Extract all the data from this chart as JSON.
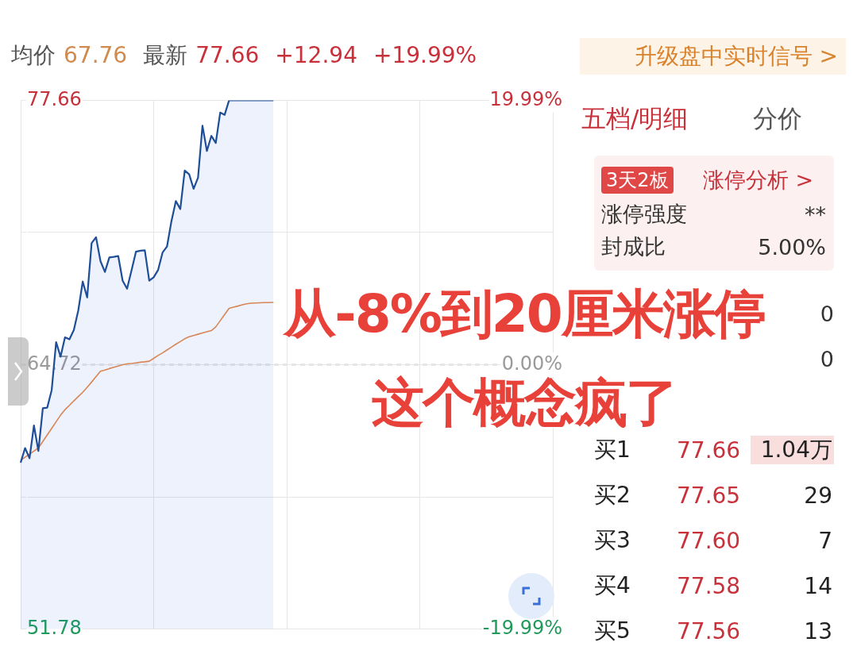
{
  "chart_data": [
    {
      "type": "line",
      "title": "从-8%到20厘米涨停这个概念疯了",
      "subtitle": "均价 67.76 最新 77.66 +12.94 +19.99%",
      "annotations": [
        "升级盘中实时信号 >"
      ],
      "categories": [
        null,
        null,
        null,
        null,
        null,
        null,
        null,
        null,
        null,
        null,
        null,
        null,
        null,
        null,
        null,
        null,
        null,
        null,
        null,
        null,
        null,
        null,
        null,
        null,
        null,
        null,
        null,
        null,
        null,
        null,
        null,
        null,
        null,
        null,
        null,
        null,
        null,
        null,
        null,
        null,
        null,
        null,
        null,
        null,
        null,
        null,
        null,
        null,
        null,
        null,
        null,
        null,
        null,
        null,
        null,
        null,
        null,
        null,
        null,
        null,
        null,
        null,
        null,
        null,
        null,
        null,
        null,
        null,
        null,
        null,
        null,
        null,
        null,
        null,
        null,
        null,
        null,
        null,
        null,
        null,
        null,
        null,
        null,
        null,
        null,
        null,
        null,
        null,
        null,
        null,
        null,
        null,
        null,
        null,
        null,
        null,
        null,
        null,
        null,
        null,
        null,
        null,
        null,
        null,
        null,
        null,
        null,
        null,
        null,
        null,
        null,
        null,
        null,
        null,
        null,
        null,
        null,
        null,
        null,
        null,
        null
      ],
      "series": [
        {
          "type": "area",
          "color": "#1f4e99",
          "values": [
            59.93,
            60.64,
            60.14,
            61.74,
            60.5,
            62.59,
            62.62,
            63.48,
            65.82,
            65.11,
            66.06,
            65.96,
            66.42,
            67.38,
            68.79,
            68.01,
            70.67,
            70.96,
            69.79,
            69.26,
            69.97,
            70.0,
            70.04,
            68.83,
            68.44,
            69.33,
            70.25,
            70.3,
            70.32,
            68.83,
            69.0,
            69.36,
            70.21,
            70.5,
            71.74,
            72.73,
            72.34,
            74.22,
            74.04,
            73.33,
            73.87,
            76.42,
            75.18,
            75.92,
            75.57,
            77.06,
            76.95,
            77.66,
            77.66,
            77.66,
            77.66,
            77.66,
            77.66,
            77.66,
            77.66,
            77.66,
            77.66,
            77.66,
            null,
            null,
            null,
            null,
            null,
            null,
            null,
            null,
            null,
            null,
            null,
            null,
            null,
            null,
            null,
            null,
            null,
            null,
            null,
            null,
            null,
            null,
            null,
            null,
            null,
            null,
            null,
            null,
            null,
            null,
            null,
            null,
            null,
            null,
            null,
            null,
            null,
            null,
            null,
            null,
            null,
            null,
            null,
            null,
            null,
            null,
            null,
            null,
            null,
            null,
            null,
            null,
            null,
            null,
            null,
            null,
            null,
            null,
            null,
            null,
            null,
            null,
            null
          ]
        },
        {
          "type": "line",
          "color": "#e8894a",
          "values": [
            60.04,
            60.19,
            60.34,
            60.49,
            60.64,
            60.96,
            61.28,
            61.6,
            61.93,
            62.25,
            62.52,
            62.73,
            62.95,
            63.16,
            63.37,
            63.61,
            63.87,
            64.14,
            64.4,
            64.46,
            64.53,
            64.59,
            64.65,
            64.72,
            64.76,
            64.78,
            64.81,
            64.84,
            64.86,
            64.89,
            65.03,
            65.17,
            65.3,
            65.44,
            65.58,
            65.72,
            65.85,
            65.99,
            66.09,
            66.15,
            66.21,
            66.27,
            66.33,
            66.39,
            66.57,
            66.87,
            67.18,
            67.48,
            67.54,
            67.59,
            67.65,
            67.7,
            67.73,
            67.74,
            67.75,
            67.76,
            67.76,
            67.77,
            null,
            null,
            null,
            null,
            null,
            null,
            null,
            null,
            null,
            null,
            null,
            null,
            null,
            null,
            null,
            null,
            null,
            null,
            null,
            null,
            null,
            null,
            null,
            null,
            null,
            null,
            null,
            null,
            null,
            null,
            null,
            null,
            null,
            null,
            null,
            null,
            null,
            null,
            null,
            null,
            null,
            null,
            null,
            null,
            null,
            null,
            null,
            null,
            null,
            null,
            null,
            null,
            null,
            null,
            null,
            null,
            null,
            null,
            null,
            null,
            null,
            null,
            null
          ]
        }
      ],
      "ylim": [
        51.78,
        77.66
      ],
      "yticks": [
        77.66,
        {
          "value": 71.19,
          "label": null
        },
        64.72,
        {
          "value": 58.25,
          "label": null
        },
        51.78
      ],
      "y2lim": [
        -19.99,
        19.99
      ],
      "y2ticks": [
        {
          "value": 19.99,
          "label": "19.99%"
        },
        {
          "value": 0,
          "label": "0.00%"
        },
        {
          "value": -19.99,
          "label": "-19.99%"
        }
      ],
      "ref_lines": [
        {
          "axis": "y",
          "value": 64.72,
          "color": "#9a9a9a",
          "line_style": "dashed"
        }
      ],
      "grid": true,
      "legend": false,
      "marker": "none"
    },
    {
      "type": "other",
      "annotations": [
        "五档/明细",
        "分价",
        "3天2板",
        "涨停分析 >",
        "涨停强度",
        "**",
        "封成比",
        "5.00%",
        "0",
        "0",
        "买1",
        "77.66",
        "1.04万",
        "买2",
        "77.65",
        "29",
        "买3",
        "77.60",
        "7",
        "买4",
        "77.58",
        "14",
        "买5",
        "77.56",
        "13"
      ]
    }
  ]
}
